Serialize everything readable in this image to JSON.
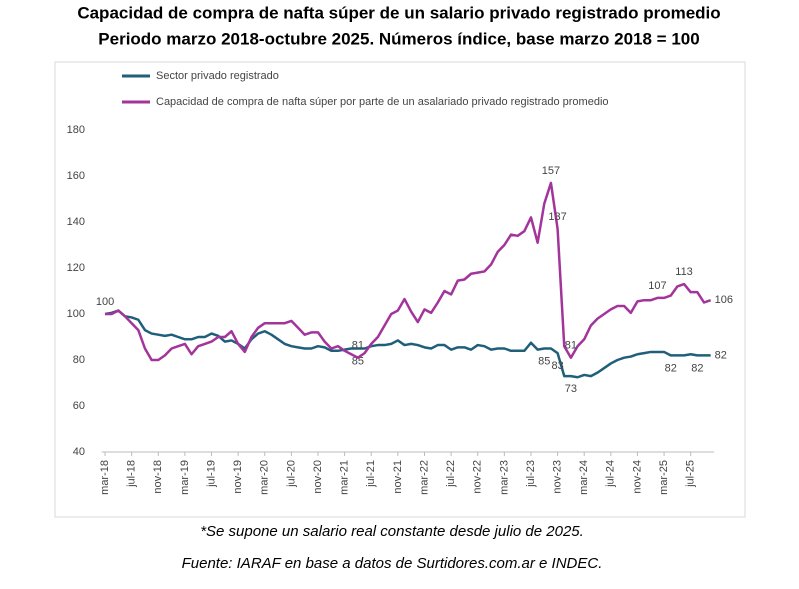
{
  "chart_data": {
    "type": "line",
    "title": "Capacidad de compra de nafta súper de un salario privado registrado promedio",
    "subtitle": "Periodo marzo 2018-octubre 2025.  Números índice, base marzo 2018 = 100",
    "notes": [
      "*Se supone un salario real constante desde julio de 2025.",
      "Fuente: IARAF en base a datos de Surtidores.com.ar  e INDEC."
    ],
    "categories": [
      "mar-18",
      null,
      null,
      null,
      "jul-18",
      null,
      null,
      null,
      "nov-18",
      null,
      null,
      null,
      "mar-19",
      null,
      null,
      null,
      "jul-19",
      null,
      null,
      null,
      "nov-19",
      null,
      null,
      null,
      "mar-20",
      null,
      null,
      null,
      "jul-20",
      null,
      null,
      null,
      "nov-20",
      null,
      null,
      null,
      "mar-21",
      null,
      null,
      null,
      "jul-21",
      null,
      null,
      null,
      "nov-21",
      null,
      null,
      null,
      "mar-22",
      null,
      null,
      null,
      "jul-22",
      null,
      null,
      null,
      "nov-22",
      null,
      null,
      null,
      "mar-23",
      null,
      null,
      null,
      "jul-23",
      null,
      null,
      null,
      "nov-23",
      null,
      null,
      null,
      "mar-24",
      null,
      null,
      null,
      "jul-24",
      null,
      null,
      null,
      "nov-24",
      null,
      null,
      null,
      "mar-25",
      null,
      null,
      null,
      "jul-25",
      null,
      null,
      null
    ],
    "ylim": [
      40,
      180
    ],
    "yticks": [
      40,
      60,
      80,
      100,
      120,
      140,
      160,
      180
    ],
    "grid": false,
    "series": [
      {
        "name": "Sector privado registrado",
        "color": "#1f5f7a",
        "labeled": [
          38,
          66,
          68,
          70,
          85,
          89,
          91
        ],
        "values": [
          100,
          100.5,
          101.5,
          99,
          98.5,
          97.5,
          93,
          91.5,
          91,
          90.5,
          91,
          90,
          89,
          89,
          90,
          90,
          91.5,
          90.5,
          88,
          88.5,
          87,
          85,
          89,
          91.5,
          92.5,
          91,
          89,
          87,
          86,
          85.5,
          85,
          85,
          86,
          85.5,
          84,
          84,
          84.5,
          85,
          85,
          85,
          86,
          86.5,
          86.5,
          87,
          88.5,
          86.5,
          87,
          86.5,
          85.5,
          85,
          86.5,
          86.5,
          84.5,
          85.5,
          85.5,
          84.5,
          86.5,
          86,
          84.5,
          85,
          85,
          84,
          84,
          84,
          87.5,
          84.5,
          85,
          85,
          83,
          73,
          73,
          72.5,
          73.5,
          73,
          74.5,
          76.5,
          78.5,
          80,
          81,
          81.5,
          82.5,
          83,
          83.5,
          83.5,
          83.5,
          82,
          82,
          82,
          82.5,
          82,
          82,
          82
        ]
      },
      {
        "name": "Capacidad de compra de nafta súper por parte de un asalariado privado registrado promedio",
        "color": "#a3349b",
        "labeled": [
          0,
          38,
          67,
          68,
          70,
          83,
          87,
          91
        ],
        "values": [
          100,
          100,
          101.5,
          99,
          96,
          93,
          85,
          80,
          80,
          82,
          85,
          86,
          87,
          82.5,
          86,
          87,
          88,
          90,
          90,
          92.5,
          87,
          83.5,
          90,
          94,
          96,
          96,
          96,
          96,
          97,
          94,
          91,
          92,
          92,
          88,
          85,
          86,
          84,
          82.5,
          81,
          83,
          87,
          90,
          95,
          100,
          101.5,
          106.5,
          101,
          96.5,
          102,
          100.5,
          105,
          110,
          108.5,
          114.5,
          115,
          117.5,
          118,
          118.5,
          121.5,
          127,
          130,
          134.5,
          134,
          136,
          142,
          131,
          148,
          157,
          137,
          86,
          81,
          86,
          89,
          95,
          98,
          100,
          102,
          103.5,
          103.5,
          100.5,
          105.5,
          106,
          106,
          107,
          107,
          108,
          112,
          113,
          109.5,
          109.5,
          105,
          106
        ]
      }
    ]
  }
}
